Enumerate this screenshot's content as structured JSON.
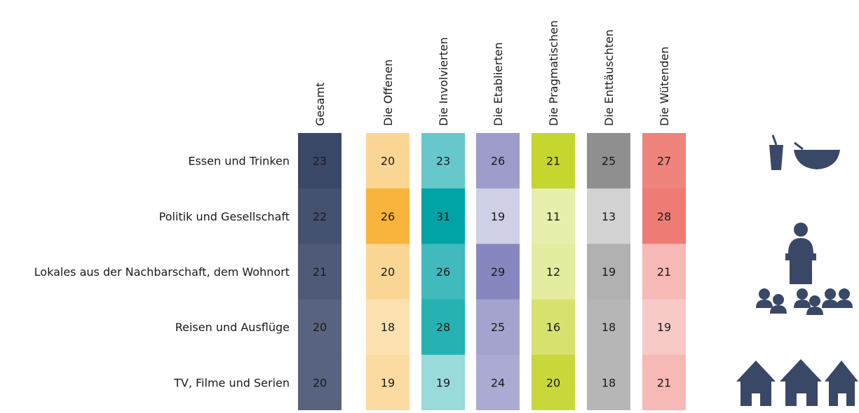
{
  "table": {
    "columns": [
      "Gesamt",
      "Die Offenen",
      "Die Involvierten",
      "Die Etablierten",
      "Die Pragmatischen",
      "Die Enttäuschten",
      "Die Wütenden"
    ],
    "colors": [
      "#3a4868",
      "#f9b43c",
      "#00a3a6",
      "#8786bf",
      "#c5d62f",
      "#8f8f8f",
      "#ee7b74"
    ],
    "rows": [
      {
        "label": "Essen und Trinken",
        "values": [
          23,
          20,
          23,
          26,
          21,
          25,
          27
        ]
      },
      {
        "label": "Politik und Gesellschaft",
        "values": [
          22,
          26,
          31,
          19,
          11,
          13,
          28
        ]
      },
      {
        "label": "Lokales aus der Nachbarschaft, dem Wohnort",
        "values": [
          21,
          20,
          26,
          29,
          12,
          19,
          21
        ]
      },
      {
        "label": "Reisen und Ausflüge",
        "values": [
          20,
          18,
          28,
          25,
          16,
          18,
          19
        ]
      },
      {
        "label": "TV, Filme und Serien",
        "values": [
          20,
          19,
          19,
          24,
          20,
          18,
          21
        ]
      }
    ]
  }
}
